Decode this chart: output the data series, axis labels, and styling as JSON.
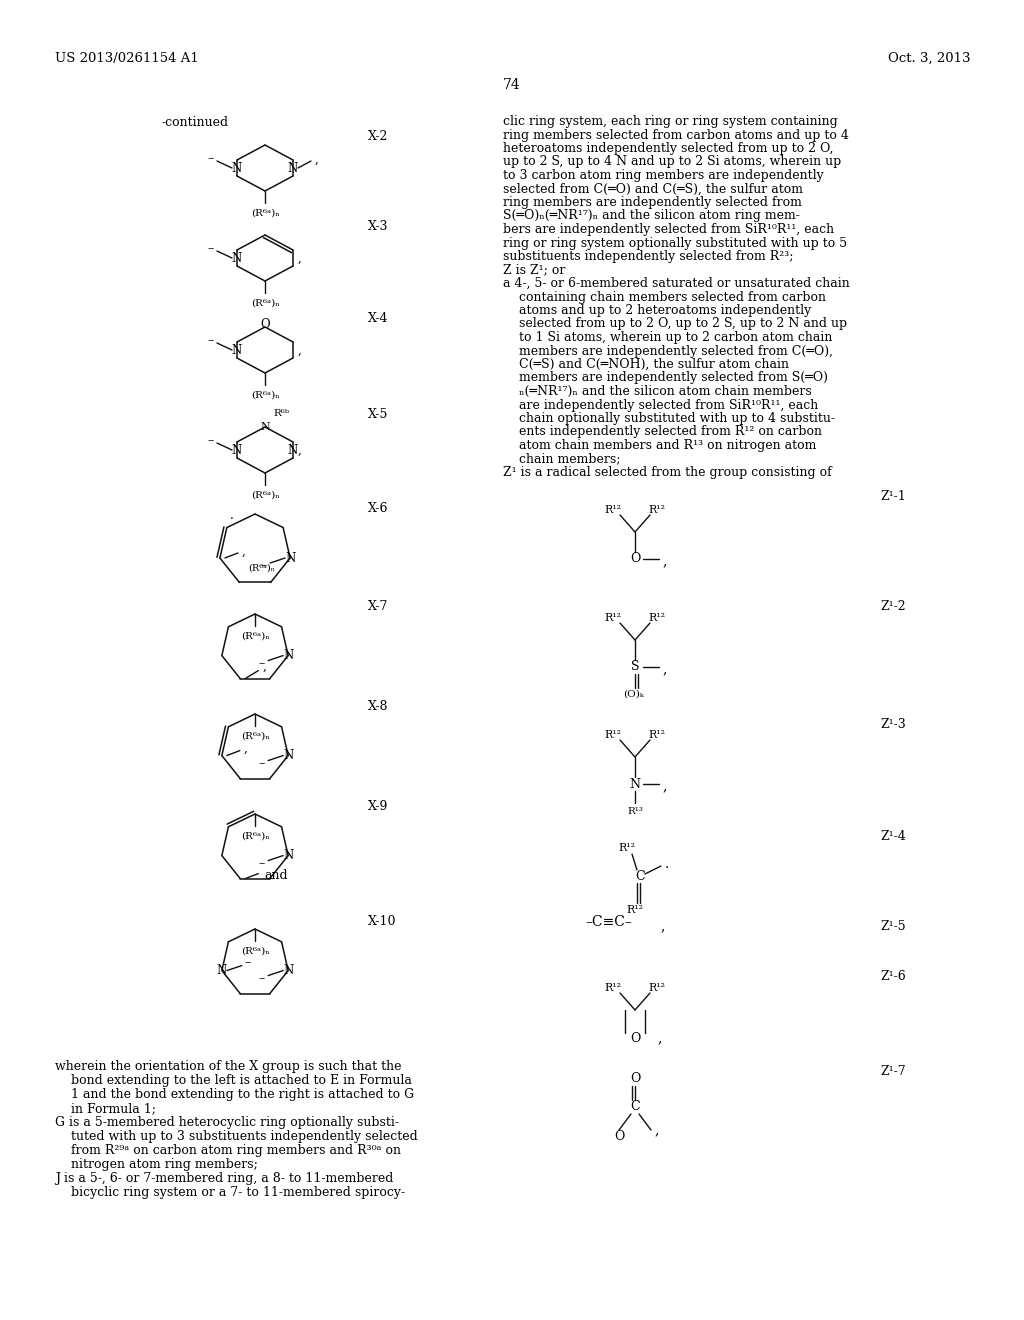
{
  "bg_color": "#ffffff",
  "header_left": "US 2013/0261154 A1",
  "header_right": "Oct. 3, 2013",
  "page_number": "74"
}
